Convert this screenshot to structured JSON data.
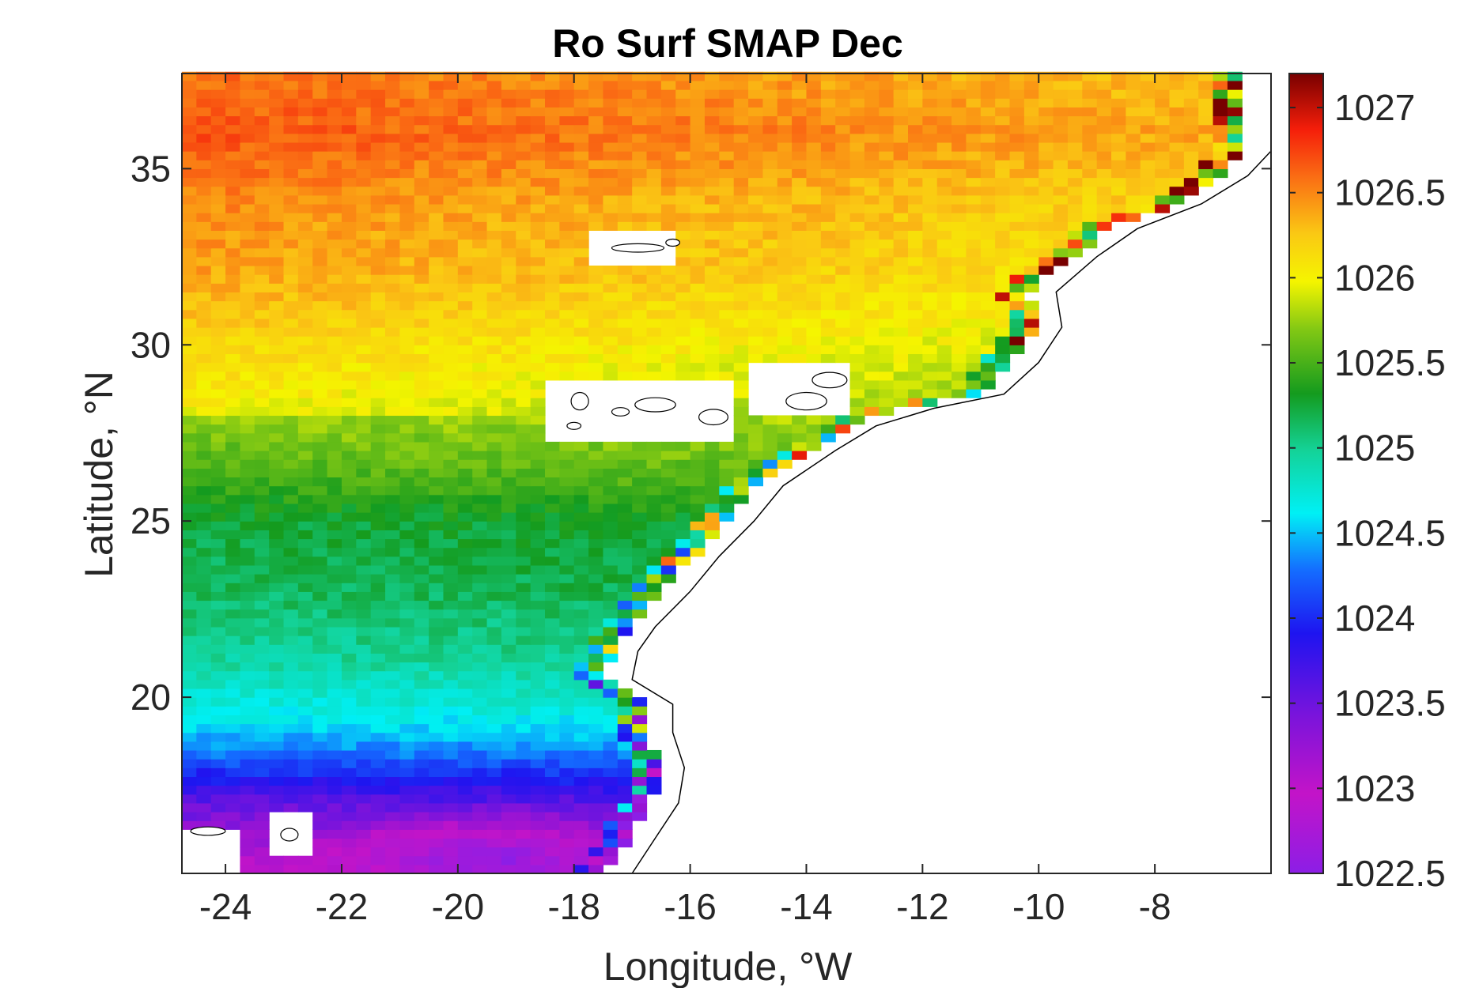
{
  "chart_data": {
    "type": "heatmap",
    "title": "Ro Surf SMAP Dec",
    "xlabel": "Longitude, °W",
    "ylabel": "Latitude, °N",
    "xlim": [
      -24.75,
      -6
    ],
    "ylim": [
      15,
      37.7
    ],
    "xticks": [
      -24,
      -22,
      -20,
      -18,
      -16,
      -14,
      -12,
      -10,
      -8
    ],
    "xtick_labels": [
      "-24",
      "-22",
      "-20",
      "-18",
      "-16",
      "-14",
      "-12",
      "-10",
      "-8"
    ],
    "yticks": [
      20,
      25,
      30,
      35
    ],
    "ytick_labels": [
      "20",
      "25",
      "30",
      "35"
    ],
    "grid": false,
    "grid_resolution_deg": 0.25,
    "colorbar": {
      "colormap": "jet-like (purple-blue-cyan-green-yellow-orange-red-darkred)",
      "clim": [
        1022.5,
        1027.2
      ],
      "ticks": [
        1022.5,
        1023,
        1023.5,
        1024,
        1024.5,
        1025,
        1025.5,
        1026,
        1026.5,
        1027
      ],
      "tick_labels": [
        "1022.5",
        "1023",
        "1023.5",
        "1024",
        "1024.5",
        "1025",
        "1025.5",
        "1026",
        "1026.5",
        "1027"
      ],
      "position": "right"
    },
    "field_profile_latitude_vs_density": [
      {
        "lat": 15.5,
        "value": 1023.1
      },
      {
        "lat": 17.0,
        "value": 1023.6
      },
      {
        "lat": 18.5,
        "value": 1024.4
      },
      {
        "lat": 19.5,
        "value": 1024.7
      },
      {
        "lat": 21.0,
        "value": 1025.0
      },
      {
        "lat": 23.0,
        "value": 1025.2
      },
      {
        "lat": 25.0,
        "value": 1025.3
      },
      {
        "lat": 26.5,
        "value": 1025.6
      },
      {
        "lat": 28.0,
        "value": 1025.8
      },
      {
        "lat": 30.0,
        "value": 1026.0
      },
      {
        "lat": 32.0,
        "value": 1026.2
      },
      {
        "lat": 34.0,
        "value": 1026.3
      },
      {
        "lat": 36.0,
        "value": 1026.5
      },
      {
        "lat": 37.7,
        "value": 1026.4
      }
    ],
    "field_minimum": {
      "lon": -19.5,
      "lat": 15.5,
      "value": 1023.0
    },
    "coastline_label": "",
    "colors": {
      "axes": "#262626",
      "background": "#ffffff",
      "land": "#ffffff",
      "coastline": "#000000"
    }
  }
}
